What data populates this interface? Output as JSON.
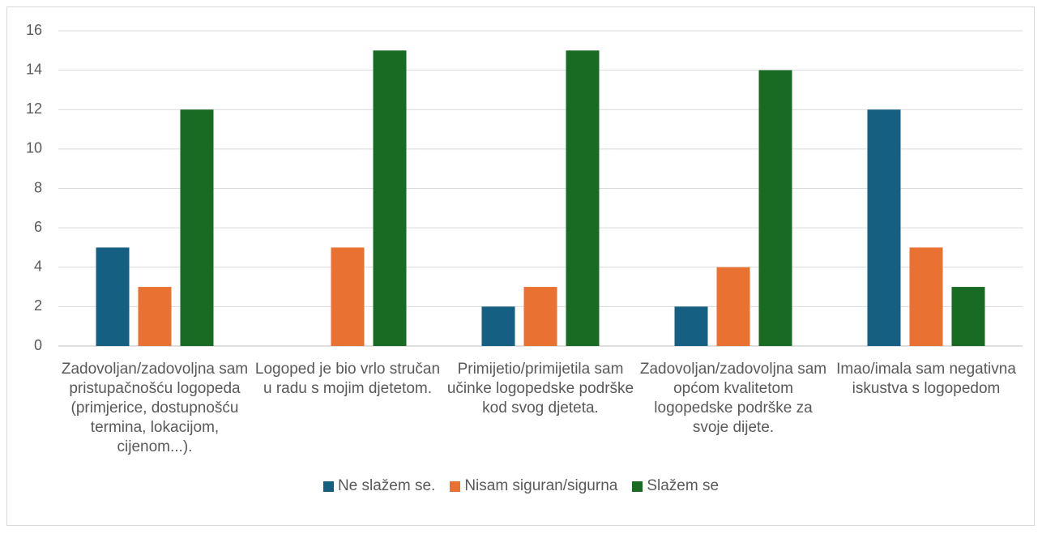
{
  "chart_data": {
    "type": "bar",
    "categories": [
      "Zadovoljan/zadovoljna sam pristupačnošću logopeda (primjerice, dostupnošću termina, lokacijom, cijenom...).",
      "Logoped je bio vrlo stručan u radu s mojim djetetom.",
      "Primijetio/primijetila sam učinke logopedske podrške kod svog djeteta.",
      "Zadovoljan/zadovoljna sam općom kvalitetom logopedske podrške za svoje dijete.",
      "Imao/imala sam negativna iskustva s logopedom"
    ],
    "series": [
      {
        "name": "Ne slažem se.",
        "color": "#155F82",
        "values": [
          5,
          0,
          2,
          2,
          12
        ]
      },
      {
        "name": "Nisam siguran/sigurna",
        "color": "#E97132",
        "values": [
          3,
          5,
          3,
          4,
          5
        ]
      },
      {
        "name": "Slažem se",
        "color": "#196B24",
        "values": [
          12,
          15,
          15,
          14,
          3
        ]
      }
    ],
    "ylim": [
      0,
      16
    ],
    "yticks": [
      0,
      2,
      4,
      6,
      8,
      10,
      12,
      14,
      16
    ],
    "grid": true,
    "legend": "bottom"
  }
}
